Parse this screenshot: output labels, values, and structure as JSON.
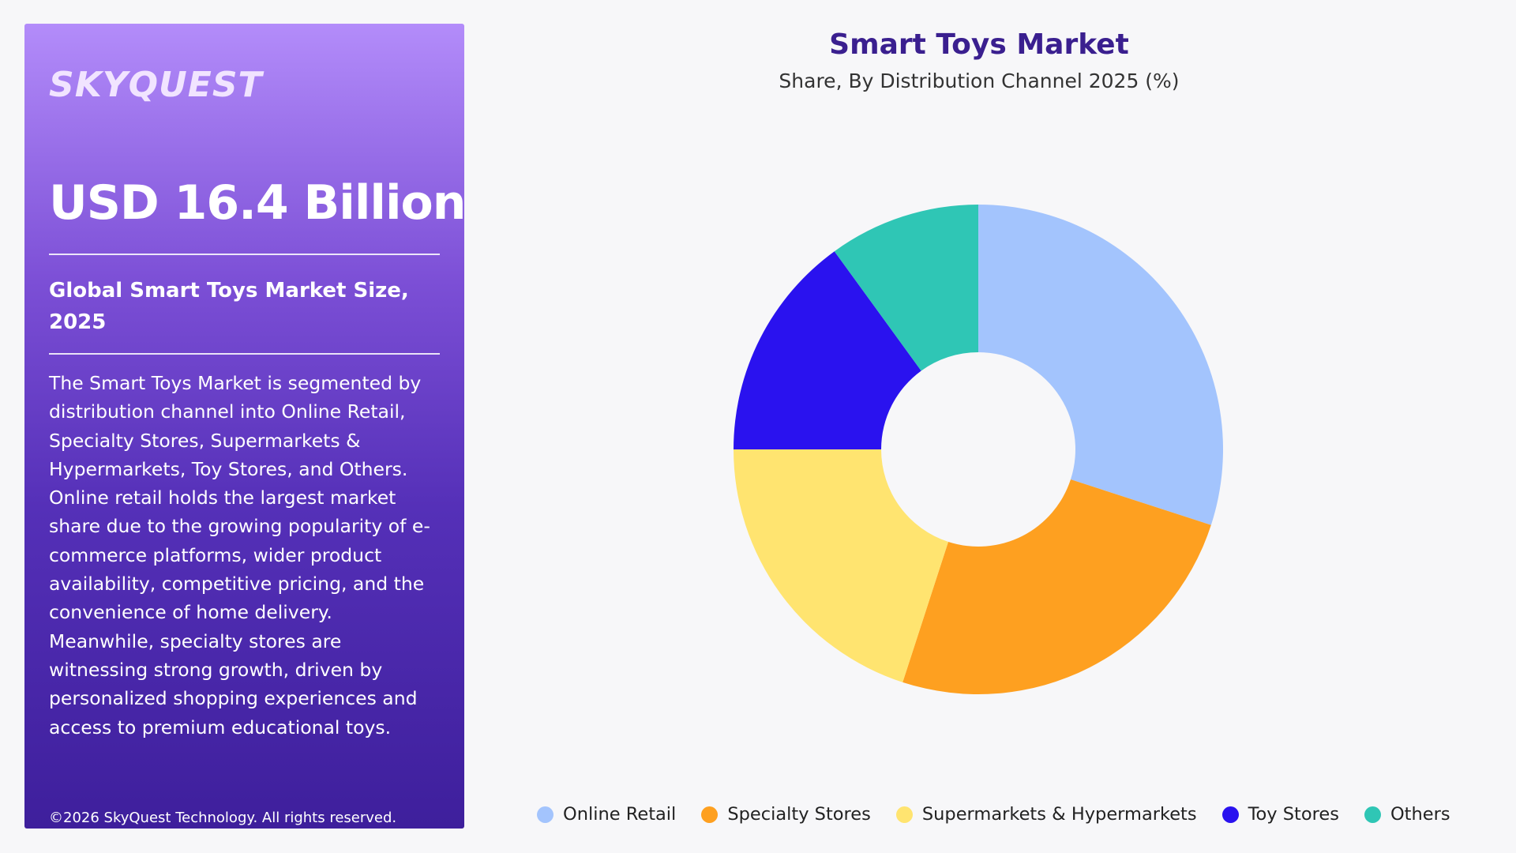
{
  "sidebar": {
    "logo": "SKYQUEST",
    "market_size": "USD 16.4 Billion",
    "subtitle": "Global Smart Toys Market Size, 2025",
    "description": "The Smart Toys Market is segmented by distribution channel into Online Retail, Specialty Stores, Supermarkets & Hypermarkets, Toy Stores, and Others. Online retail holds the largest market share due to the growing popularity of e-commerce platforms, wider product availability, competitive pricing, and the convenience of home delivery. Meanwhile, specialty stores are witnessing strong growth, driven by personalized shopping experiences and access to premium educational toys.",
    "copyright": "©2026 SkyQuest Technology. All rights reserved."
  },
  "chart_data": {
    "type": "pie",
    "title": "Smart Toys Market",
    "subtitle": "Share, By Distribution Channel 2025 (%)",
    "categories": [
      "Online Retail",
      "Specialty Stores",
      "Supermarkets & Hypermarkets",
      "Toy Stores",
      "Others"
    ],
    "values": [
      30,
      25,
      20,
      15,
      10
    ],
    "colors": [
      "#a3c4fd",
      "#fea020",
      "#ffe470",
      "#2a12ef",
      "#2fc6b5"
    ],
    "legend_position": "bottom"
  }
}
